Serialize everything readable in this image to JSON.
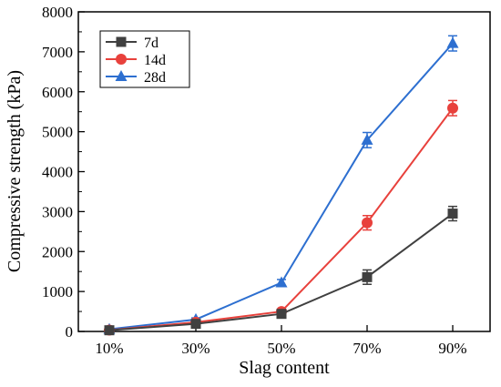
{
  "chart_data": {
    "type": "line",
    "title": "",
    "xlabel": "Slag content",
    "ylabel": "Compressive strength (kPa)",
    "categories": [
      "10%",
      "30%",
      "50%",
      "70%",
      "90%"
    ],
    "ylim": [
      0,
      8000
    ],
    "yticks": [
      0,
      1000,
      2000,
      3000,
      4000,
      5000,
      6000,
      7000,
      8000
    ],
    "grid": false,
    "legend_position": "top-left",
    "series": [
      {
        "name": "7d",
        "color": "#404040",
        "marker": "square",
        "values": [
          30,
          190,
          440,
          1360,
          2950
        ],
        "errors": [
          20,
          30,
          40,
          180,
          180
        ]
      },
      {
        "name": "14d",
        "color": "#e8413c",
        "marker": "circle",
        "values": [
          35,
          230,
          500,
          2720,
          5590
        ],
        "errors": [
          20,
          30,
          40,
          180,
          190
        ]
      },
      {
        "name": "28d",
        "color": "#2d6fd0",
        "marker": "triangle",
        "values": [
          55,
          300,
          1220,
          4790,
          7210
        ],
        "errors": [
          25,
          40,
          80,
          190,
          190
        ]
      }
    ]
  }
}
